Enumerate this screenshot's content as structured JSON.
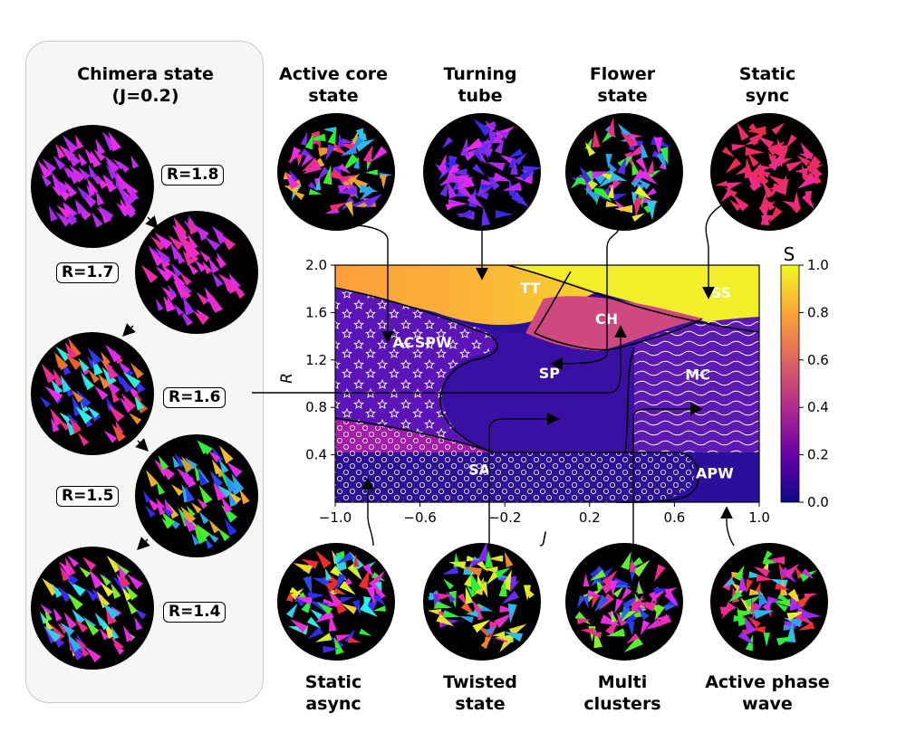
{
  "chimera": {
    "title_line1": "Chimera state",
    "title_line2": "(J=0.2)",
    "snapshots": [
      {
        "label": "R=1.8",
        "hues": [
          290,
          300,
          280
        ]
      },
      {
        "label": "R=1.7",
        "hues": [
          280,
          300,
          320
        ]
      },
      {
        "label": "R=1.6",
        "hues": [
          180,
          240,
          300,
          330,
          20
        ]
      },
      {
        "label": "R=1.5",
        "hues": [
          200,
          240,
          300,
          120,
          40
        ]
      },
      {
        "label": "R=1.4",
        "hues": [
          190,
          250,
          300,
          100,
          60,
          330
        ]
      }
    ]
  },
  "states_top": [
    {
      "line1": "Active core",
      "line2": "state",
      "hues": [
        120,
        200,
        260,
        300,
        40,
        330
      ]
    },
    {
      "line1": "Turning",
      "line2": "tube",
      "hues": [
        270,
        250,
        290
      ]
    },
    {
      "line1": "Flower",
      "line2": "state",
      "hues": [
        300,
        250,
        200,
        120,
        60,
        330
      ]
    },
    {
      "line1": "Static",
      "line2": "sync",
      "hues": [
        340,
        345,
        335
      ]
    }
  ],
  "states_bottom": [
    {
      "line1": "Static",
      "line2": "async",
      "hues": [
        0,
        60,
        120,
        180,
        240,
        300
      ]
    },
    {
      "line1": "Twisted",
      "line2": "state",
      "hues": [
        60,
        120,
        200,
        260,
        320,
        20
      ]
    },
    {
      "line1": "Multi",
      "line2": "clusters",
      "hues": [
        100,
        300,
        330,
        230
      ]
    },
    {
      "line1": "Active phase",
      "line2": "wave",
      "hues": [
        0,
        50,
        120,
        200,
        280,
        330
      ]
    }
  ],
  "colorbar": {
    "label": "S",
    "ticks": [
      "1.0",
      "0.8",
      "0.6",
      "0.4",
      "0.2",
      "0.0"
    ],
    "colors": [
      "#0d0887",
      "#6a00a8",
      "#b12a90",
      "#e16462",
      "#fca636",
      "#f0f921"
    ]
  },
  "chart_data": {
    "type": "heatmap",
    "title": "",
    "xlabel": "J",
    "ylabel": "R",
    "xlim": [
      -1.0,
      1.0
    ],
    "ylim": [
      0.0,
      2.0
    ],
    "x_ticks": [
      "−1.0",
      "−0.6",
      "−0.2",
      "0.2",
      "0.6",
      "1.0"
    ],
    "y_ticks": [
      "2.0",
      "1.6",
      "1.2",
      "0.8",
      "0.4"
    ],
    "value_label": "S",
    "value_range": [
      0.0,
      1.0
    ],
    "regions": [
      {
        "label": "TT",
        "J": -0.08,
        "R": 1.81
      },
      {
        "label": "SS",
        "J": 0.82,
        "R": 1.77
      },
      {
        "label": "CH",
        "J": 0.28,
        "R": 1.55
      },
      {
        "label": "ACSPW",
        "J": -0.59,
        "R": 1.35
      },
      {
        "label": "SP",
        "J": 0.01,
        "R": 1.09
      },
      {
        "label": "MC",
        "J": 0.71,
        "R": 1.08
      },
      {
        "label": "SA",
        "J": -0.32,
        "R": 0.28
      },
      {
        "label": "APW",
        "J": 0.79,
        "R": 0.25
      }
    ]
  }
}
